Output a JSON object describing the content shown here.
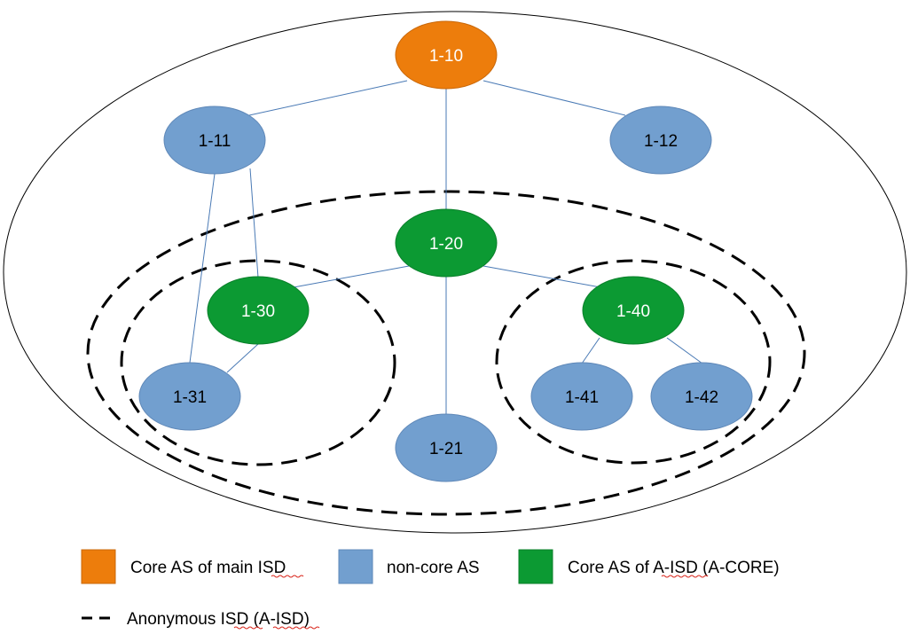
{
  "colors": {
    "core_main": "#ed7d0c",
    "non_core": "#729fcf",
    "core_aisd": "#0c9a33",
    "link": "#4a7ab5",
    "node_border_blue": "#5f88b8"
  },
  "nodes": [
    {
      "id": "1-10",
      "label": "1-10",
      "kind": "core_main"
    },
    {
      "id": "1-11",
      "label": "1-11",
      "kind": "non_core"
    },
    {
      "id": "1-12",
      "label": "1-12",
      "kind": "non_core"
    },
    {
      "id": "1-20",
      "label": "1-20",
      "kind": "core_aisd"
    },
    {
      "id": "1-30",
      "label": "1-30",
      "kind": "core_aisd"
    },
    {
      "id": "1-40",
      "label": "1-40",
      "kind": "core_aisd"
    },
    {
      "id": "1-31",
      "label": "1-31",
      "kind": "non_core"
    },
    {
      "id": "1-21",
      "label": "1-21",
      "kind": "non_core"
    },
    {
      "id": "1-41",
      "label": "1-41",
      "kind": "non_core"
    },
    {
      "id": "1-42",
      "label": "1-42",
      "kind": "non_core"
    }
  ],
  "links": [
    [
      "1-10",
      "1-11"
    ],
    [
      "1-10",
      "1-12"
    ],
    [
      "1-10",
      "1-20"
    ],
    [
      "1-11",
      "1-31"
    ],
    [
      "1-11",
      "1-30"
    ],
    [
      "1-20",
      "1-30"
    ],
    [
      "1-20",
      "1-40"
    ],
    [
      "1-20",
      "1-21"
    ],
    [
      "1-30",
      "1-31"
    ],
    [
      "1-40",
      "1-41"
    ],
    [
      "1-40",
      "1-42"
    ]
  ],
  "legend": {
    "core_main_label": "Core AS of main ISD",
    "non_core_label": "non-core AS",
    "core_aisd_label": "Core AS of A-ISD (A-CORE)",
    "aisd_label": "Anonymous ISD (A-ISD)"
  }
}
